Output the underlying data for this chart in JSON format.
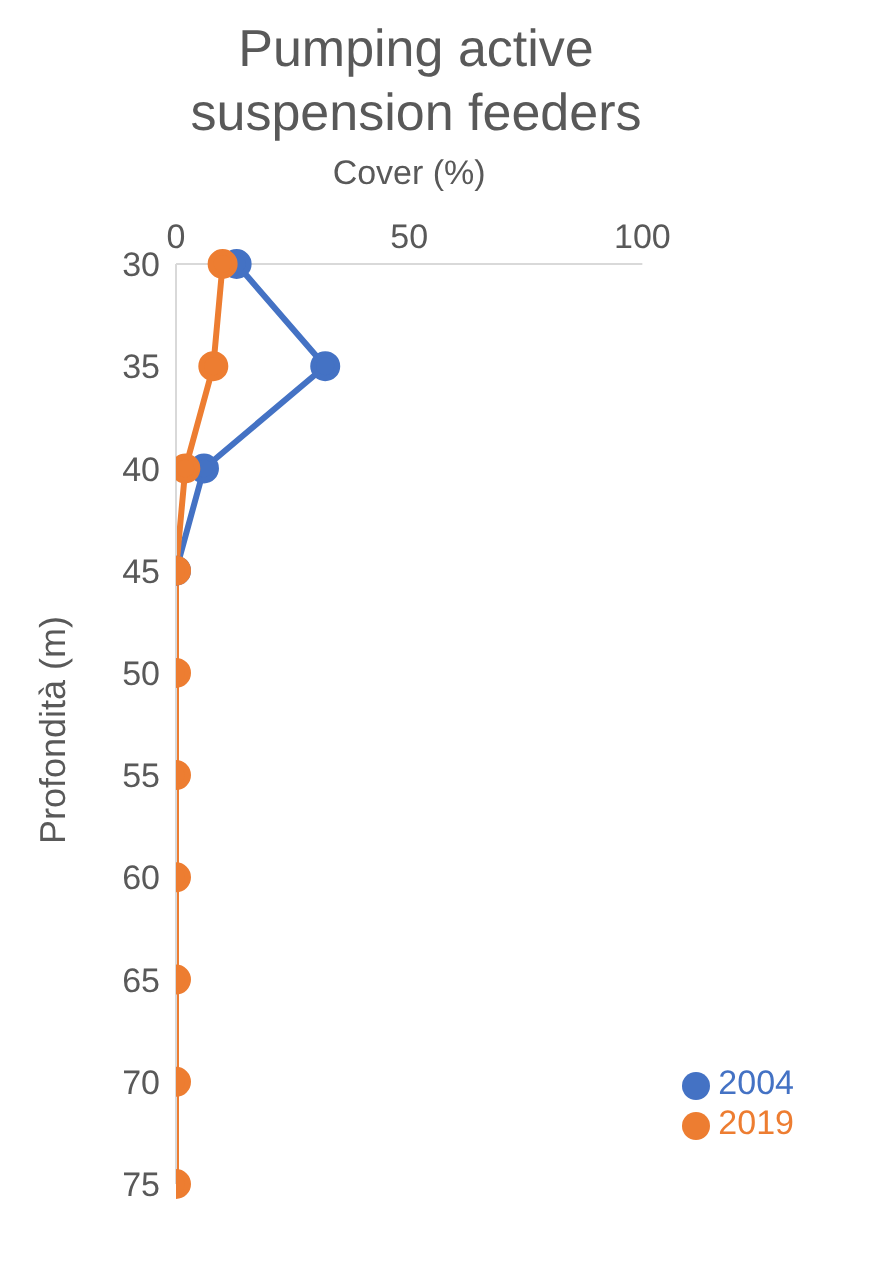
{
  "chart_data": {
    "type": "line",
    "title": "Pumping active suspension feeders",
    "xlabel": "Cover (%)",
    "ylabel": "Profondità (m)",
    "orientation": "horizontal",
    "categories": [
      "30",
      "35",
      "40",
      "45",
      "50",
      "55",
      "60",
      "65",
      "70",
      "75"
    ],
    "series": [
      {
        "name": "2004",
        "color": "#4472c4",
        "values": [
          13,
          32,
          6,
          0,
          null,
          null,
          null,
          null,
          null,
          null
        ]
      },
      {
        "name": "2019",
        "color": "#ed7d31",
        "values": [
          10,
          8,
          2,
          0,
          0,
          0,
          0,
          0,
          0,
          0
        ]
      }
    ],
    "xlim": [
      0,
      100
    ],
    "xticks": [
      0,
      50,
      100
    ],
    "legend": "bottom right",
    "marker": "circle",
    "line_style": "solid"
  }
}
